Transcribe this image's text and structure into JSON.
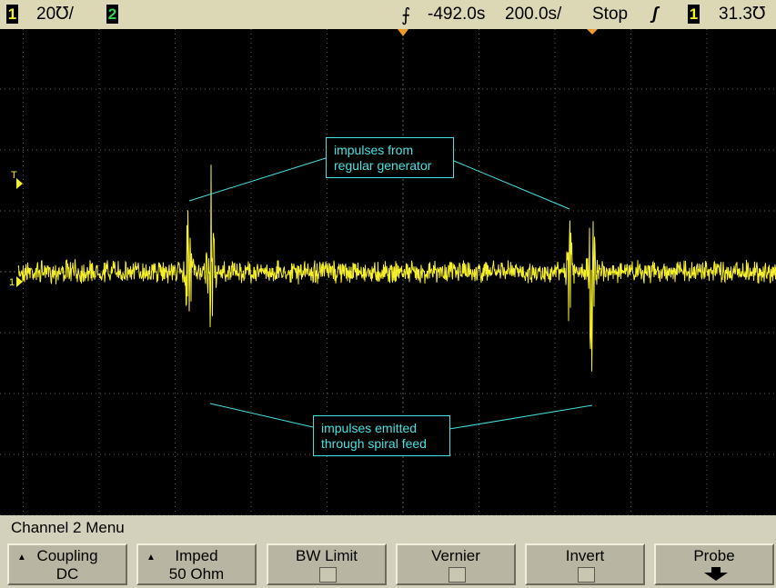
{
  "status_bar": {
    "ch1_number": "1",
    "ch1_scale": "20℧/",
    "ch2_number": "2",
    "time_delay": "-492.0s",
    "time_scale": "200.0s/",
    "run_state": "Stop",
    "trigger_slope_icon": "rising-edge-icon",
    "trigger_source": "1",
    "trigger_level": "31.3℧"
  },
  "markers": {
    "trigger_level_label": "T",
    "ch1_ground_label": "1"
  },
  "annotations": {
    "generator": [
      "impulses from",
      "regular generator"
    ],
    "spiral": [
      "impulses emitted",
      "through spiral feed"
    ]
  },
  "menu": {
    "title": "Channel 2 Menu",
    "softkeys": [
      {
        "line1": "Coupling",
        "line2": "DC",
        "control": "selector"
      },
      {
        "line1": "Imped",
        "line2": "50 Ohm",
        "control": "selector"
      },
      {
        "line1": "BW Limit",
        "line2": "",
        "control": "checkbox",
        "checked": false
      },
      {
        "line1": "Vernier",
        "line2": "",
        "control": "checkbox",
        "checked": false
      },
      {
        "line1": "Invert",
        "line2": "",
        "control": "checkbox",
        "checked": false
      },
      {
        "line1": "Probe",
        "line2": "",
        "control": "submenu-arrow"
      }
    ]
  },
  "colors": {
    "trace_ch1": "#f5ee2b",
    "annotation": "#47e2e2",
    "grid": "#5f5f5f",
    "marker": "#f09a2d"
  }
}
